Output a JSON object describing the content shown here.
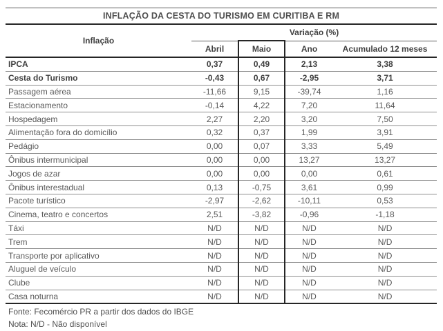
{
  "title": "INFLAÇÃO DA CESTA DO TURISMO EM CURITIBA E RM",
  "chart_data": {
    "type": "table",
    "title": "INFLAÇÃO DA CESTA DO TURISMO EM CURITIBA E RM",
    "row_header_label": "Inflação",
    "value_group_label": "Variação (%)",
    "columns": [
      "Abril",
      "Maio",
      "Ano",
      "Acumulado 12 meses"
    ],
    "highlighted_column": "Maio",
    "rows": [
      {
        "label": "IPCA",
        "bold": true,
        "values": [
          "0,37",
          "0,49",
          "2,13",
          "3,38"
        ]
      },
      {
        "label": "Cesta do Turismo",
        "bold": true,
        "values": [
          "-0,43",
          "0,67",
          "-2,95",
          "3,71"
        ]
      },
      {
        "label": "Passagem aérea",
        "bold": false,
        "values": [
          "-11,66",
          "9,15",
          "-39,74",
          "1,16"
        ]
      },
      {
        "label": "Estacionamento",
        "bold": false,
        "values": [
          "-0,14",
          "4,22",
          "7,20",
          "11,64"
        ]
      },
      {
        "label": "Hospedagem",
        "bold": false,
        "values": [
          "2,27",
          "2,20",
          "3,20",
          "7,50"
        ]
      },
      {
        "label": "Alimentação fora do domicílio",
        "bold": false,
        "values": [
          "0,32",
          "0,37",
          "1,99",
          "3,91"
        ]
      },
      {
        "label": "Pedágio",
        "bold": false,
        "values": [
          "0,00",
          "0,07",
          "3,33",
          "5,49"
        ]
      },
      {
        "label": "Ônibus intermunicipal",
        "bold": false,
        "values": [
          "0,00",
          "0,00",
          "13,27",
          "13,27"
        ]
      },
      {
        "label": "Jogos de azar",
        "bold": false,
        "values": [
          "0,00",
          "0,00",
          "0,00",
          "0,61"
        ]
      },
      {
        "label": "Ônibus interestadual",
        "bold": false,
        "values": [
          "0,13",
          "-0,75",
          "3,61",
          "0,99"
        ]
      },
      {
        "label": "Pacote turístico",
        "bold": false,
        "values": [
          "-2,97",
          "-2,62",
          "-10,11",
          "0,53"
        ]
      },
      {
        "label": "Cinema, teatro e concertos",
        "bold": false,
        "values": [
          "2,51",
          "-3,82",
          "-0,96",
          "-1,18"
        ]
      },
      {
        "label": "Táxi",
        "bold": false,
        "values": [
          "N/D",
          "N/D",
          "N/D",
          "N/D"
        ]
      },
      {
        "label": "Trem",
        "bold": false,
        "values": [
          "N/D",
          "N/D",
          "N/D",
          "N/D"
        ]
      },
      {
        "label": "Transporte por aplicativo",
        "bold": false,
        "values": [
          "N/D",
          "N/D",
          "N/D",
          "N/D"
        ]
      },
      {
        "label": "Aluguel de veículo",
        "bold": false,
        "values": [
          "N/D",
          "N/D",
          "N/D",
          "N/D"
        ]
      },
      {
        "label": "Clube",
        "bold": false,
        "values": [
          "N/D",
          "N/D",
          "N/D",
          "N/D"
        ]
      },
      {
        "label": "Casa noturna",
        "bold": false,
        "values": [
          "N/D",
          "N/D",
          "N/D",
          "N/D"
        ]
      }
    ],
    "footnotes": [
      "Fonte: Fecomércio PR a partir dos dados do IBGE",
      "Nota: N/D - Não disponível"
    ]
  },
  "colors": {
    "background": "#ffffff",
    "text": "#595959",
    "text_bold": "#404040",
    "thin_line": "#8c8c8c",
    "thick_line": "#262626"
  }
}
